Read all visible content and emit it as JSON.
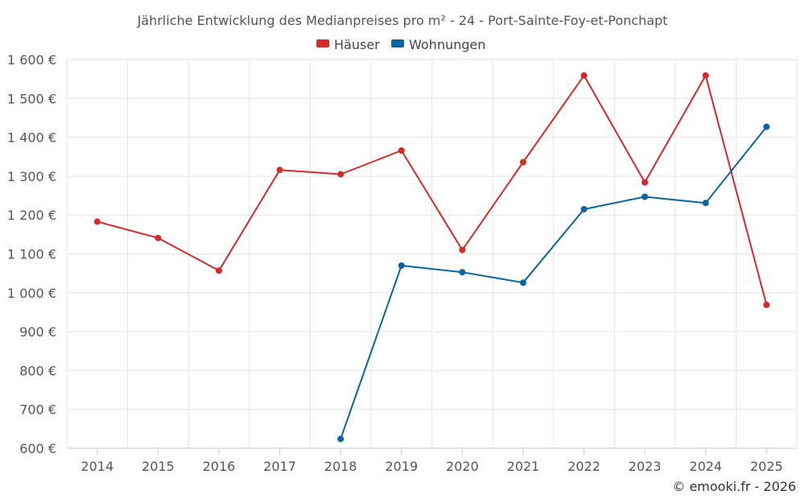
{
  "chart_data": {
    "type": "line",
    "title": "Jährliche Entwicklung des Medianpreises pro m² - 24 - Port-Sainte-Foy-et-Ponchapt",
    "categories": [
      "2014",
      "2015",
      "2016",
      "2017",
      "2018",
      "2019",
      "2020",
      "2021",
      "2022",
      "2023",
      "2024",
      "2025"
    ],
    "series": [
      {
        "name": "Häuser",
        "color": "#d32a2a",
        "values": [
          1183,
          1141,
          1057,
          1316,
          1305,
          1366,
          1110,
          1336,
          1559,
          1284,
          1559,
          969
        ]
      },
      {
        "name": "Wohnungen",
        "color": "#0a64a0",
        "values": [
          null,
          null,
          null,
          null,
          624,
          1070,
          1053,
          1026,
          1215,
          1247,
          1231,
          1427
        ]
      }
    ],
    "ylim": [
      600,
      1600
    ],
    "yticks": [
      600,
      700,
      800,
      900,
      1000,
      1100,
      1200,
      1300,
      1400,
      1500,
      1600
    ],
    "ytick_labels": [
      "600 €",
      "700 €",
      "800 €",
      "900 €",
      "1 000 €",
      "1 100 €",
      "1 200 €",
      "1 300 €",
      "1 400 €",
      "1 500 €",
      "1 600 €"
    ],
    "xlabel": "",
    "ylabel": "",
    "grid": true,
    "legend_position": "top-center"
  },
  "credit": "© emooki.fr - 2026"
}
